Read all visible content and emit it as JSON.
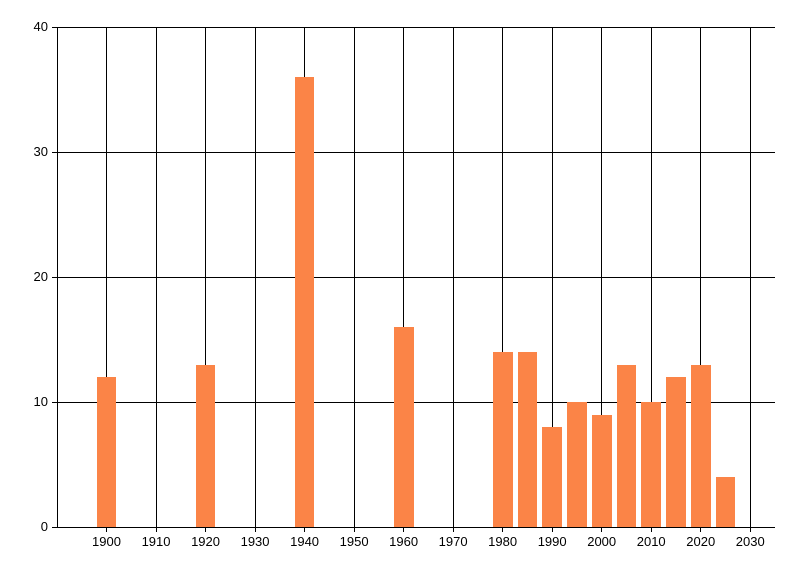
{
  "chart_data": {
    "type": "bar",
    "title": "",
    "xlabel": "",
    "ylabel": "",
    "x": [
      1900,
      1920,
      1940,
      1960,
      1980,
      1985,
      1990,
      1995,
      2000,
      2005,
      2010,
      2015,
      2020,
      2025
    ],
    "values": [
      12,
      13,
      36,
      16,
      14,
      14,
      8,
      10,
      9,
      13,
      10,
      12,
      13,
      4
    ],
    "xlim": [
      1890,
      2035
    ],
    "ylim": [
      0,
      40
    ],
    "x_ticks": [
      1900,
      1910,
      1920,
      1930,
      1940,
      1950,
      1960,
      1970,
      1980,
      1990,
      2000,
      2010,
      2020,
      2030
    ],
    "y_ticks": [
      0,
      10,
      20,
      30,
      40
    ],
    "grid": true,
    "legend": "none",
    "bar_color": "#FB8447",
    "axis_color": "#000000",
    "bar_width_years": 4
  }
}
